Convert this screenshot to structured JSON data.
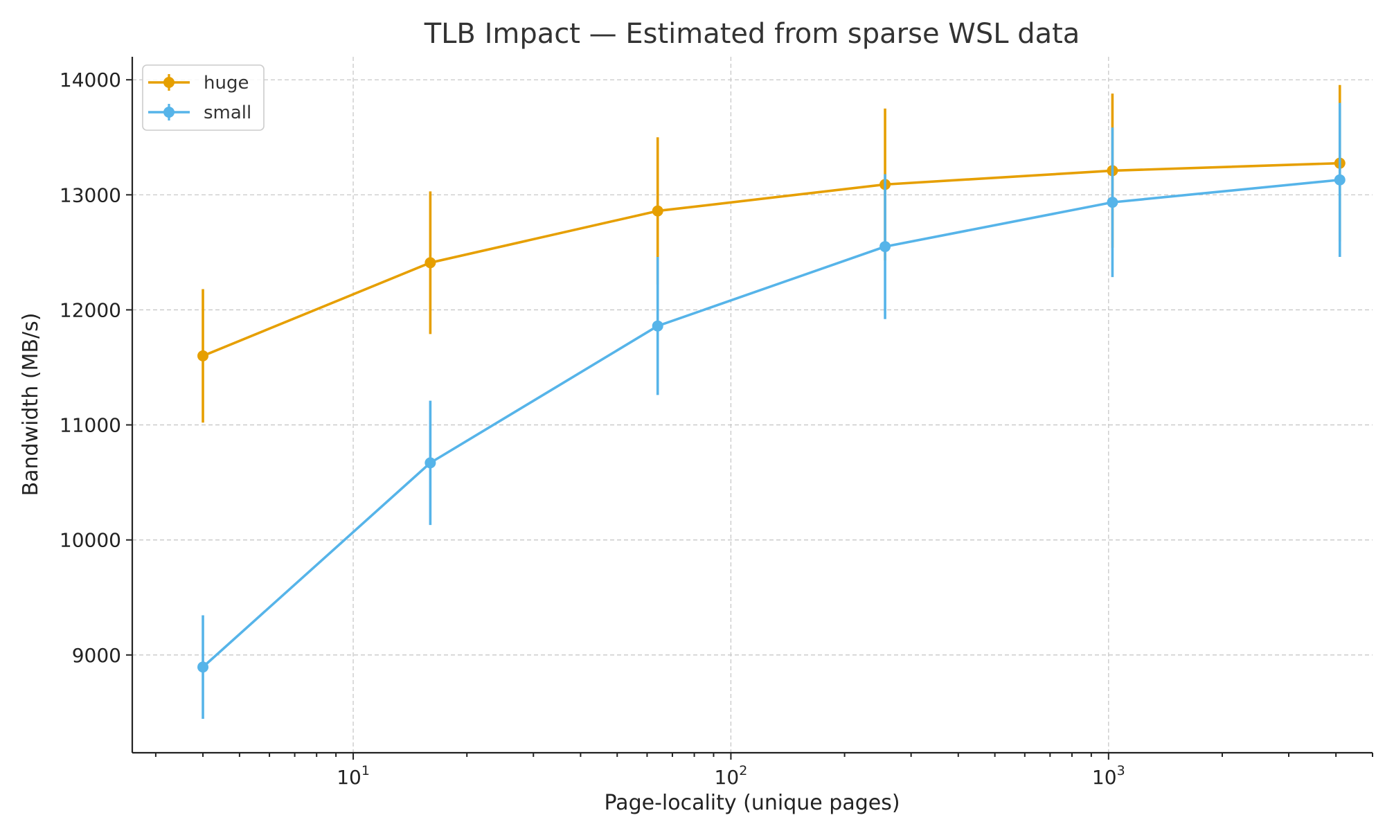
{
  "chart_data": {
    "type": "line",
    "title": "TLB Impact — Estimated from sparse WSL data",
    "xlabel": "Page-locality (unique pages)",
    "ylabel": "Bandwidth (MB/s)",
    "x_scale": "log",
    "xlim": [
      2.6,
      5000
    ],
    "ylim": [
      8150,
      14200
    ],
    "grid": true,
    "legend_position": "top-left",
    "x_ticks": [
      {
        "base": "10",
        "exp": "1",
        "value": 10
      },
      {
        "base": "10",
        "exp": "2",
        "value": 100
      },
      {
        "base": "10",
        "exp": "3",
        "value": 1000
      }
    ],
    "y_ticks": [
      9000,
      10000,
      11000,
      12000,
      13000,
      14000
    ],
    "x": [
      4,
      16,
      64,
      256,
      1024,
      4096
    ],
    "series": [
      {
        "name": "huge",
        "color": "#E69F00",
        "values": [
          11600,
          12410,
          12860,
          13090,
          13210,
          13275
        ],
        "error": [
          580,
          620,
          640,
          660,
          670,
          680
        ]
      },
      {
        "name": "small",
        "color": "#56B4E9",
        "values": [
          8895,
          10670,
          11860,
          12550,
          12935,
          13130
        ],
        "error": [
          450,
          540,
          600,
          630,
          650,
          670
        ]
      }
    ]
  }
}
